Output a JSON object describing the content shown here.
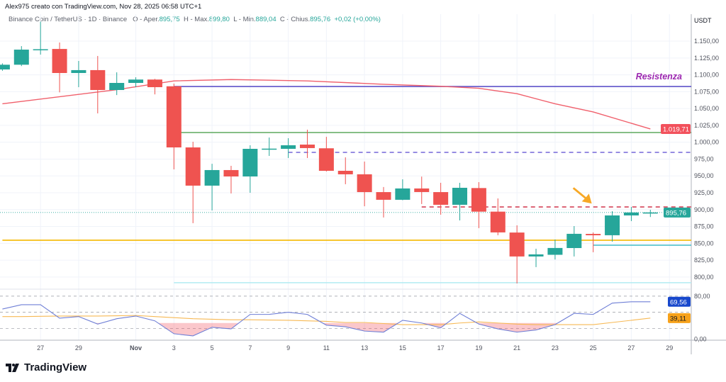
{
  "header": {
    "credit": "Alex975 creato con TradingView.com, Nov 28, 2025 06:58 UTC+1",
    "symbol": "Binance Coin / TetherUS · 1D · Binance",
    "open_label": "O - Aper.",
    "open": "895,75",
    "high_label": "H - Max.",
    "high": "899,80",
    "low_label": "L - Min.",
    "low": "889,04",
    "close_label": "C - Chius.",
    "close": "895,76",
    "change": "+0,02 (+0,00%)"
  },
  "footer": {
    "logo_text": "TradingView"
  },
  "colors": {
    "up": "#26a69a",
    "down": "#ef5350",
    "ma": "#f0606c",
    "rsi": "#6f7fd6",
    "rsi_ma": "#f7b955",
    "grid": "#f0f3fa"
  },
  "chart_data": {
    "type": "candlestick",
    "currency": "USDT",
    "ylim": [
      782,
      1190
    ],
    "y_ticks": [
      "1.150,00",
      "1.125,00",
      "1.100,00",
      "1.075,00",
      "1.050,00",
      "1.025,00",
      "1.000,00",
      "975,00",
      "950,00",
      "925,00",
      "900,00",
      "875,00",
      "850,00",
      "825,00",
      "800,00"
    ],
    "y_tick_values": [
      1150,
      1125,
      1100,
      1075,
      1050,
      1025,
      1000,
      975,
      950,
      925,
      900,
      875,
      850,
      825,
      800
    ],
    "x_labels": [
      {
        "date": "Oct 27",
        "label": "27"
      },
      {
        "date": "Oct 29",
        "label": "29"
      },
      {
        "date": "Nov 1",
        "label": "Nov"
      },
      {
        "date": "Nov 3",
        "label": "3"
      },
      {
        "date": "Nov 5",
        "label": "5"
      },
      {
        "date": "Nov 7",
        "label": "7"
      },
      {
        "date": "Nov 9",
        "label": "9"
      },
      {
        "date": "Nov 11",
        "label": "11"
      },
      {
        "date": "Nov 13",
        "label": "13"
      },
      {
        "date": "Nov 15",
        "label": "15"
      },
      {
        "date": "Nov 17",
        "label": "17"
      },
      {
        "date": "Nov 19",
        "label": "19"
      },
      {
        "date": "Nov 21",
        "label": "21"
      },
      {
        "date": "Nov 23",
        "label": "23"
      },
      {
        "date": "Nov 25",
        "label": "25"
      },
      {
        "date": "Nov 27",
        "label": "27"
      },
      {
        "date": "Nov 29",
        "label": "29"
      }
    ],
    "dates": [
      "Oct 25",
      "Oct 26",
      "Oct 27",
      "Oct 28",
      "Oct 29",
      "Oct 30",
      "Oct 31",
      "Nov 1",
      "Nov 2",
      "Nov 3",
      "Nov 4",
      "Nov 5",
      "Nov 6",
      "Nov 7",
      "Nov 8",
      "Nov 9",
      "Nov 10",
      "Nov 11",
      "Nov 12",
      "Nov 13",
      "Nov 14",
      "Nov 15",
      "Nov 16",
      "Nov 17",
      "Nov 18",
      "Nov 19",
      "Nov 20",
      "Nov 21",
      "Nov 22",
      "Nov 23",
      "Nov 24",
      "Nov 25",
      "Nov 26",
      "Nov 27",
      "Nov 28"
    ],
    "ohlc": [
      [
        1108,
        1117,
        1106,
        1115
      ],
      [
        1115,
        1142.6,
        1113,
        1137.4
      ],
      [
        1137.4,
        1179,
        1130,
        1138
      ],
      [
        1138.4,
        1148,
        1074,
        1102.7
      ],
      [
        1102.7,
        1120.6,
        1081.7,
        1107
      ],
      [
        1107,
        1128,
        1042.8,
        1077.5
      ],
      [
        1077.5,
        1103.7,
        1070,
        1088
      ],
      [
        1088,
        1096.4,
        1081.7,
        1093
      ],
      [
        1093,
        1094,
        1071,
        1081.7
      ],
      [
        1083,
        1087,
        959.7,
        992.3
      ],
      [
        992.3,
        1000.7,
        879.9,
        935.6
      ],
      [
        935.6,
        968,
        898.8,
        958.7
      ],
      [
        958.7,
        965,
        924,
        949.2
      ],
      [
        949.2,
        995.5,
        925,
        990.2
      ],
      [
        990,
        1007,
        979.7,
        990.5
      ],
      [
        990.2,
        1006,
        976.6,
        995.5
      ],
      [
        996.5,
        1018.6,
        976.6,
        991.3
      ],
      [
        991,
        1008,
        956.6,
        957.6
      ],
      [
        957.6,
        977.6,
        937.7,
        952.4
      ],
      [
        952.4,
        971.3,
        905,
        926
      ],
      [
        926,
        933.5,
        888.3,
        914.6
      ],
      [
        914.6,
        945,
        914,
        931.4
      ],
      [
        931.4,
        949,
        908.3,
        926.1
      ],
      [
        926,
        939.8,
        892.5,
        907.2
      ],
      [
        907.2,
        939.8,
        884,
        932.4
      ],
      [
        932,
        940.8,
        872.5,
        897
      ],
      [
        897,
        916.6,
        862,
        866.2
      ],
      [
        866,
        876.7,
        790.5,
        830.5
      ],
      [
        830.5,
        842,
        814.7,
        833.6
      ],
      [
        833,
        855.7,
        826,
        843.1
      ],
      [
        843,
        875.6,
        830.5,
        864.1
      ],
      [
        864,
        866.2,
        836.8,
        862
      ],
      [
        862,
        897.7,
        852.5,
        891.4
      ],
      [
        891.4,
        904,
        883,
        895.75
      ],
      [
        895.75,
        899.8,
        889.04,
        895.76
      ]
    ],
    "moving_average": {
      "points": [
        [
          "Oct 25",
          1057
        ],
        [
          "Oct 31",
          1078
        ],
        [
          "Nov 3",
          1091
        ],
        [
          "Nov 6",
          1093
        ],
        [
          "Nov 10",
          1091
        ],
        [
          "Nov 14",
          1086
        ],
        [
          "Nov 17",
          1083
        ],
        [
          "Nov 19",
          1080
        ],
        [
          "Nov 21",
          1072
        ],
        [
          "Nov 23",
          1057
        ],
        [
          "Nov 25",
          1045
        ],
        [
          "Nov 28",
          1019.71
        ]
      ],
      "last_label": "1.019,71"
    },
    "last_price_label": "895,76",
    "last_price": 895.76,
    "annotation": {
      "text": "Resistenza",
      "color": "#9c27b0"
    },
    "levels": [
      {
        "price": 1082.7,
        "color": "#5e53c9",
        "style": "solid",
        "from": "Nov 3"
      },
      {
        "price": 1014.4,
        "color": "#5fa85f",
        "style": "solid",
        "from": "Nov 3"
      },
      {
        "price": 985,
        "color": "#7467d8",
        "style": "dashed",
        "from": "Nov 9"
      },
      {
        "price": 904,
        "color": "#d0334a",
        "style": "dashed",
        "from": "Nov 16"
      },
      {
        "price": 854.6,
        "color": "#f5b800",
        "style": "solid",
        "from": "Oct 25"
      },
      {
        "price": 847.3,
        "color": "#4dbfcc",
        "style": "solid",
        "from": "Nov 25"
      },
      {
        "price": 791.6,
        "color": "#b2ebf2",
        "style": "solid",
        "from": "Nov 3"
      }
    ],
    "arrow": {
      "color": "#f7a826",
      "at_date": "Nov 25",
      "price": 910
    },
    "rsi": {
      "ylim": [
        -2,
        93
      ],
      "bands": [
        80,
        50,
        20
      ],
      "tick_labels": [
        "80,00",
        "0,00"
      ],
      "tick_values": [
        80,
        0
      ],
      "values": [
        56,
        64,
        64,
        39,
        42,
        28,
        38,
        43,
        34,
        10,
        6,
        22,
        19,
        46,
        46,
        50,
        46,
        26,
        23,
        15,
        13,
        35,
        30,
        21,
        48,
        28,
        19,
        13,
        17,
        27,
        48,
        46,
        67,
        69.5,
        69.56
      ],
      "ma": [
        42,
        42,
        42.5,
        43,
        43,
        43,
        43.5,
        44,
        42,
        40,
        38,
        37,
        36,
        36,
        35.5,
        35,
        34,
        33,
        31,
        31,
        29,
        27,
        27,
        27,
        30,
        32,
        30,
        28,
        27,
        27,
        27,
        27,
        31,
        35,
        39.11
      ],
      "last_label": "69,56",
      "ma_last_label": "39,11",
      "label_color": "#1848cc",
      "ma_label_color": "#f7a21b"
    }
  }
}
